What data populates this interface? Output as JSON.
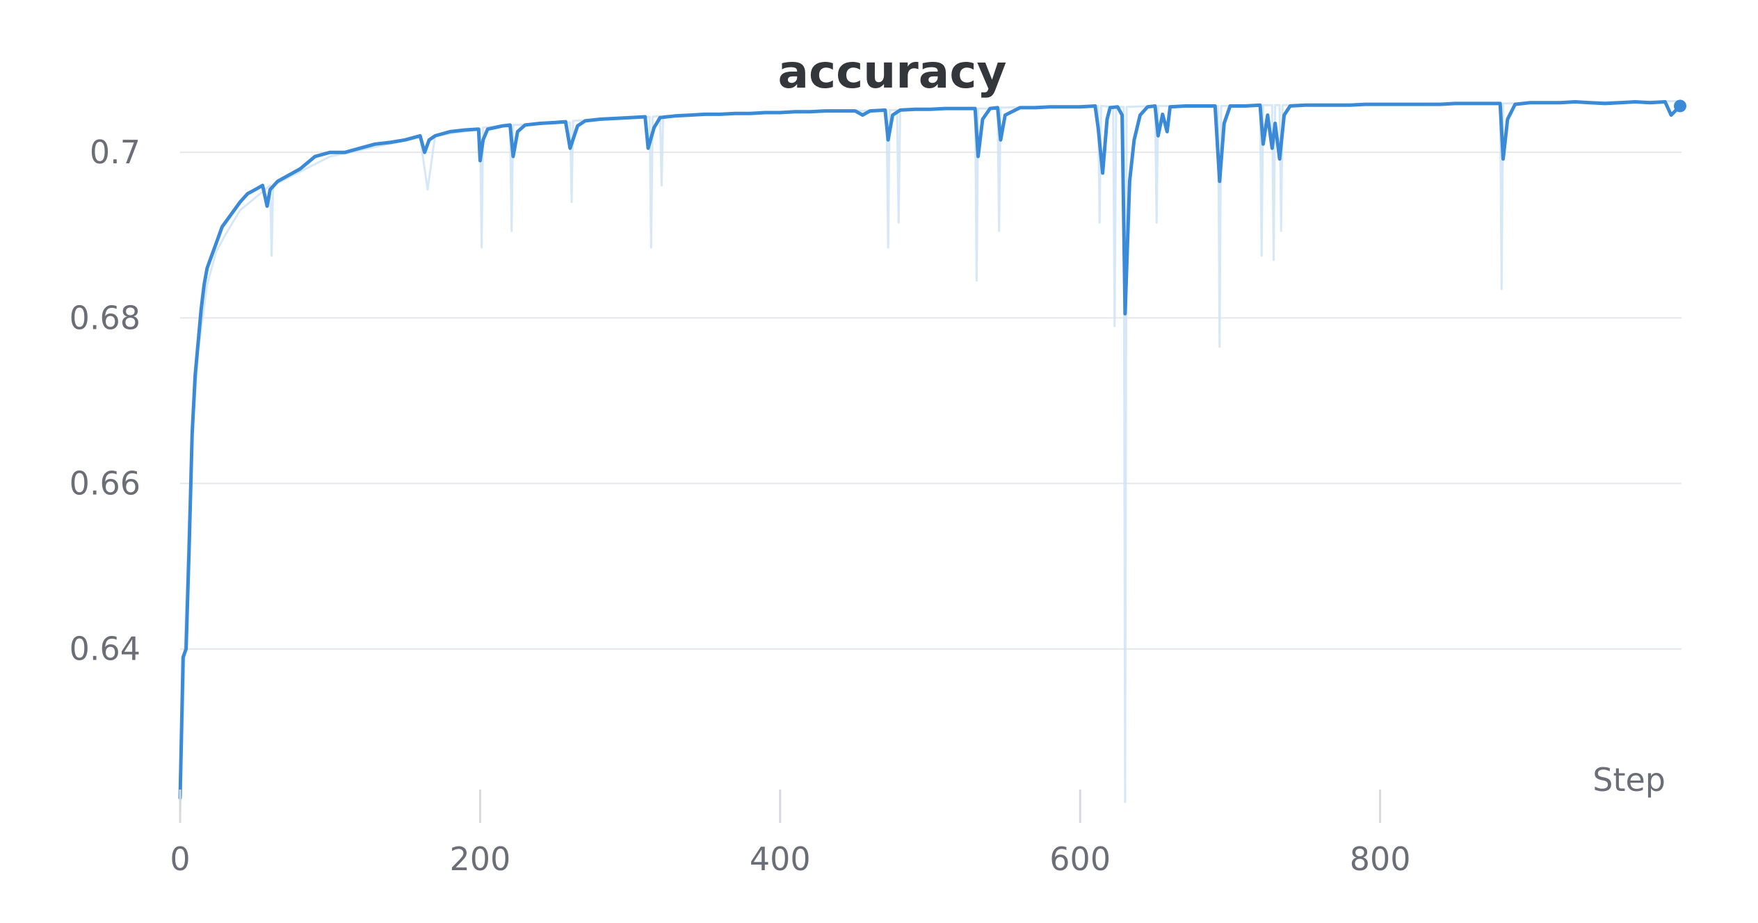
{
  "chart_data": {
    "type": "line",
    "title": "accuracy",
    "xlabel": "Step",
    "ylabel": "",
    "xlim": [
      0,
      1000
    ],
    "ylim": [
      0.621,
      0.709
    ],
    "x_ticks": [
      0,
      200,
      400,
      600,
      800
    ],
    "x_tick_labels": [
      "0",
      "200",
      "400",
      "600",
      "800"
    ],
    "y_ticks": [
      0.64,
      0.66,
      0.68,
      0.7
    ],
    "y_tick_labels": [
      "0.64",
      "0.66",
      "0.68",
      "0.7"
    ],
    "grid": true,
    "legend": "none",
    "colors": {
      "smoothed": "#3a8ad8",
      "raw": "#cfe3f6",
      "grid": "#e6e7ea",
      "tick": "#d8d9dd"
    },
    "series": [
      {
        "role": "smoothed",
        "x": [
          0,
          2,
          4,
          6,
          8,
          10,
          12,
          14,
          16,
          18,
          20,
          24,
          28,
          32,
          36,
          40,
          45,
          50,
          55,
          58,
          60,
          65,
          70,
          80,
          90,
          100,
          110,
          120,
          130,
          140,
          150,
          160,
          163,
          166,
          170,
          180,
          190,
          199,
          200,
          202,
          205,
          210,
          215,
          220,
          222,
          225,
          230,
          240,
          250,
          257,
          260,
          265,
          270,
          280,
          290,
          300,
          310,
          312,
          316,
          320,
          330,
          340,
          350,
          360,
          370,
          380,
          390,
          400,
          410,
          420,
          430,
          440,
          450,
          455,
          460,
          470,
          472,
          475,
          480,
          490,
          500,
          510,
          520,
          530,
          532,
          535,
          540,
          545,
          547,
          550,
          560,
          570,
          580,
          590,
          600,
          610,
          612,
          615,
          618,
          620,
          625,
          628,
          630,
          633,
          636,
          640,
          645,
          650,
          652,
          655,
          658,
          660,
          670,
          680,
          690,
          693,
          696,
          700,
          710,
          720,
          722,
          725,
          728,
          730,
          733,
          736,
          740,
          750,
          760,
          770,
          780,
          790,
          800,
          810,
          820,
          830,
          840,
          850,
          860,
          870,
          880,
          882,
          885,
          890,
          900,
          910,
          920,
          930,
          940,
          950,
          960,
          970,
          980,
          990,
          994,
          1000
        ],
        "values": [
          0.622,
          0.639,
          0.64,
          0.652,
          0.666,
          0.673,
          0.677,
          0.681,
          0.684,
          0.686,
          0.687,
          0.689,
          0.691,
          0.692,
          0.693,
          0.694,
          0.695,
          0.6955,
          0.696,
          0.6935,
          0.6955,
          0.6965,
          0.697,
          0.698,
          0.6995,
          0.7,
          0.7,
          0.7005,
          0.701,
          0.7012,
          0.7015,
          0.702,
          0.7,
          0.7015,
          0.702,
          0.7025,
          0.7027,
          0.7028,
          0.699,
          0.7015,
          0.7028,
          0.703,
          0.7032,
          0.7033,
          0.6995,
          0.7025,
          0.7033,
          0.7035,
          0.7036,
          0.7037,
          0.7005,
          0.7032,
          0.7038,
          0.704,
          0.7041,
          0.7042,
          0.7043,
          0.7005,
          0.703,
          0.7042,
          0.7044,
          0.7045,
          0.7046,
          0.7046,
          0.7047,
          0.7047,
          0.7048,
          0.7048,
          0.7049,
          0.7049,
          0.705,
          0.705,
          0.705,
          0.7045,
          0.705,
          0.7051,
          0.7015,
          0.7045,
          0.7051,
          0.7052,
          0.7052,
          0.7053,
          0.7053,
          0.7053,
          0.6995,
          0.704,
          0.7053,
          0.7054,
          0.7015,
          0.7045,
          0.7054,
          0.7054,
          0.7055,
          0.7055,
          0.7055,
          0.7056,
          0.703,
          0.6975,
          0.704,
          0.7054,
          0.7055,
          0.7045,
          0.6805,
          0.6965,
          0.7015,
          0.7045,
          0.7055,
          0.7056,
          0.702,
          0.7046,
          0.7025,
          0.7055,
          0.7056,
          0.7056,
          0.7056,
          0.6965,
          0.7035,
          0.7056,
          0.7056,
          0.7057,
          0.701,
          0.7045,
          0.7005,
          0.7035,
          0.6992,
          0.7045,
          0.7056,
          0.7057,
          0.7057,
          0.7057,
          0.7057,
          0.7058,
          0.7058,
          0.7058,
          0.7058,
          0.7058,
          0.7058,
          0.7059,
          0.7059,
          0.7059,
          0.7059,
          0.6992,
          0.704,
          0.7058,
          0.706,
          0.706,
          0.706,
          0.7061,
          0.706,
          0.7059,
          0.706,
          0.7061,
          0.706,
          0.7061,
          0.7045,
          0.7056
        ]
      },
      {
        "role": "raw",
        "x": [
          0,
          3,
          6,
          9,
          12,
          18,
          24,
          30,
          40,
          60,
          61,
          62,
          100,
          160,
          165,
          170,
          200,
          201,
          202,
          220,
          221,
          222,
          260,
          261,
          262,
          313,
          314,
          315,
          320,
          321,
          322,
          471,
          472,
          473,
          478,
          479,
          480,
          530,
          531,
          532,
          545,
          546,
          547,
          612,
          613,
          614,
          622,
          623,
          624,
          629,
          630,
          631,
          650,
          651,
          652,
          692,
          693,
          694,
          720,
          721,
          722,
          728,
          729,
          730,
          733,
          734,
          735,
          760,
          800,
          840,
          880,
          881,
          882,
          1000
        ],
        "values": [
          0.62,
          0.64,
          0.656,
          0.668,
          0.676,
          0.684,
          0.688,
          0.69,
          0.693,
          0.696,
          0.6875,
          0.696,
          0.6995,
          0.7018,
          0.6955,
          0.702,
          0.7028,
          0.6885,
          0.703,
          0.7033,
          0.6905,
          0.7033,
          0.7036,
          0.694,
          0.7038,
          0.7043,
          0.6885,
          0.7043,
          0.7044,
          0.696,
          0.7044,
          0.7051,
          0.6885,
          0.7051,
          0.7051,
          0.6915,
          0.7051,
          0.7053,
          0.6845,
          0.7053,
          0.7053,
          0.6905,
          0.7054,
          0.7056,
          0.6915,
          0.7056,
          0.7055,
          0.679,
          0.7055,
          0.7055,
          0.6215,
          0.7055,
          0.7056,
          0.6915,
          0.7056,
          0.7056,
          0.6765,
          0.7056,
          0.7057,
          0.6875,
          0.7057,
          0.7057,
          0.687,
          0.7057,
          0.7057,
          0.6905,
          0.7057,
          0.7058,
          0.7058,
          0.7059,
          0.7059,
          0.6835,
          0.7059,
          0.7062
        ]
      }
    ]
  }
}
